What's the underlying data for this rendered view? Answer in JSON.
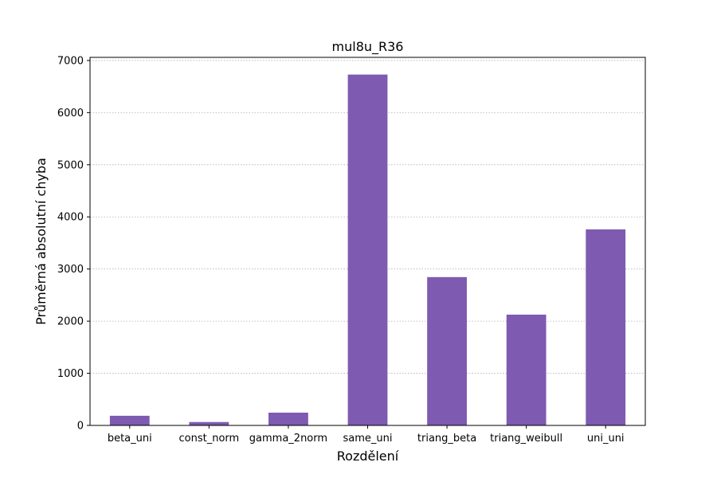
{
  "chart_data": {
    "type": "bar",
    "title": "mul8u_R36",
    "xlabel": "Rozdělení",
    "ylabel": "Průměrná absolutní chyba",
    "categories": [
      "beta_uni",
      "const_norm",
      "gamma_2norm",
      "same_uni",
      "triang_beta",
      "triang_weibull",
      "uni_uni"
    ],
    "values": [
      185,
      65,
      245,
      6730,
      2845,
      2125,
      3760
    ],
    "ylim": [
      0,
      7060
    ],
    "yticks": [
      0,
      1000,
      2000,
      3000,
      4000,
      5000,
      6000,
      7000
    ],
    "grid": "y, dotted",
    "legend": "none",
    "bar_color": "#7e5ab1"
  }
}
